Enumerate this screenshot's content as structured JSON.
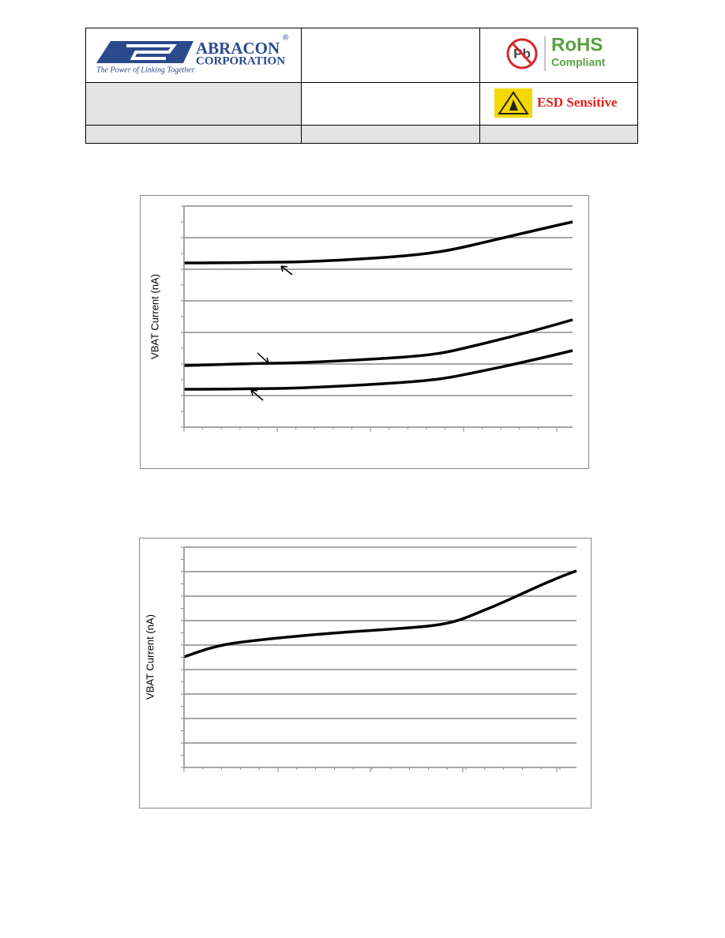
{
  "header": {
    "logo": {
      "name": "ABRACON",
      "registered": "®",
      "subtitle": "CORPORATION",
      "tagline": "The Power of Linking Together"
    },
    "rohs": {
      "symbol": "Pb",
      "title": "RoHS",
      "subtitle": "Compliant"
    },
    "esd": {
      "label": "ESD Sensitive"
    }
  },
  "charts": [
    {
      "y_label": "VBAT Current (nA)"
    },
    {
      "y_label": "VBAT Current (nA)"
    }
  ]
}
